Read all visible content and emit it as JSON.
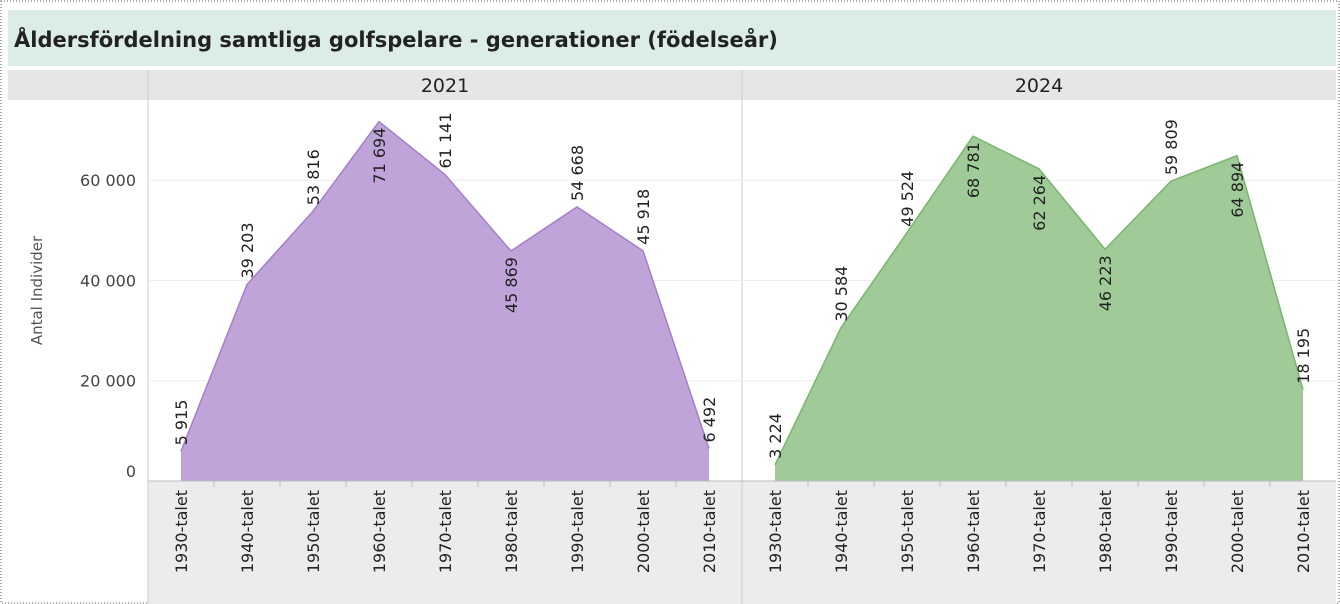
{
  "title": "Åldersfördelning samtliga golfspelare - generationer (födelseår)",
  "chart_data": [
    {
      "type": "area",
      "title": "2021",
      "ylabel": "Antal Individer",
      "color": "#a57fc9",
      "categories": [
        "1930-talet",
        "1940-talet",
        "1950-talet",
        "1960-talet",
        "1970-talet",
        "1980-talet",
        "1990-talet",
        "2000-talet",
        "2010-talet"
      ],
      "values": [
        5915,
        39203,
        53816,
        71694,
        61141,
        45869,
        54668,
        45918,
        6492
      ],
      "value_labels": [
        "5 915",
        "39 203",
        "53 816",
        "71 694",
        "61 141",
        "45 869",
        "54 668",
        "45 918",
        "6 492"
      ],
      "ylim": [
        0,
        76000
      ],
      "yticks": [
        0,
        {
          "value": 20000,
          "label": "20 000"
        },
        {
          "value": 40000,
          "label": "40 000"
        },
        {
          "value": 60000,
          "label": "60 000"
        }
      ],
      "grid": true
    },
    {
      "type": "area",
      "title": "2024",
      "color": "#7ab56e",
      "categories": [
        "1930-talet",
        "1940-talet",
        "1950-talet",
        "1960-talet",
        "1970-talet",
        "1980-talet",
        "1990-talet",
        "2000-talet",
        "2010-talet"
      ],
      "values": [
        3224,
        30584,
        49524,
        68781,
        62264,
        46223,
        59809,
        64894,
        18195
      ],
      "value_labels": [
        "3 224",
        "30 584",
        "49 524",
        "68 781",
        "62 264",
        "46 223",
        "59 809",
        "64 894",
        "18 195"
      ],
      "ylim": [
        0,
        76000
      ],
      "yticks": [
        0,
        {
          "value": 20000,
          "label": "20 000"
        },
        {
          "value": 40000,
          "label": "40 000"
        },
        {
          "value": 60000,
          "label": "60 000"
        }
      ],
      "grid": true
    }
  ]
}
